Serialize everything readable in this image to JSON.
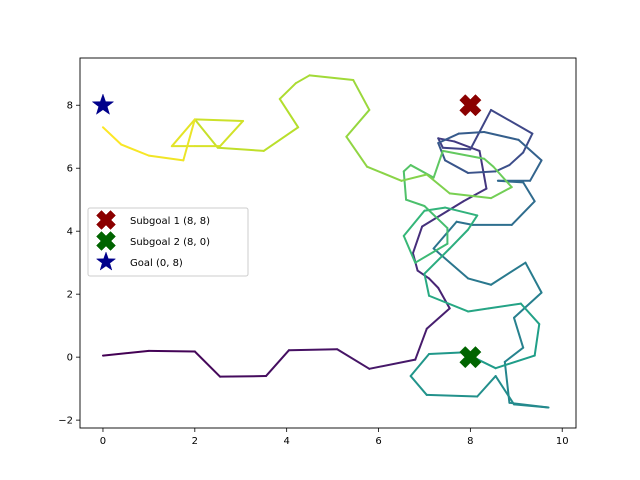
{
  "chart_data": {
    "type": "line",
    "title": "",
    "xlabel": "",
    "ylabel": "",
    "xlim": [
      -0.5,
      10.3
    ],
    "ylim": [
      -2.25,
      9.5
    ],
    "xticks": [
      0,
      2,
      4,
      6,
      8,
      10
    ],
    "yticks": [
      -2,
      0,
      2,
      4,
      6,
      8
    ],
    "grid": false,
    "colormap": "viridis",
    "path": [
      [
        0,
        0.05
      ],
      [
        1,
        0.2
      ],
      [
        2,
        0.18
      ],
      [
        2.55,
        -0.62
      ],
      [
        3.55,
        -0.6
      ],
      [
        4.05,
        0.22
      ],
      [
        5.1,
        0.25
      ],
      [
        5.8,
        -0.37
      ],
      [
        6.8,
        -0.08
      ],
      [
        7.05,
        0.9
      ],
      [
        7.55,
        1.55
      ],
      [
        7.3,
        2.2
      ],
      [
        7.1,
        2.5
      ],
      [
        6.85,
        2.75
      ],
      [
        6.75,
        3.3
      ],
      [
        6.95,
        4.15
      ],
      [
        7.85,
        4.95
      ],
      [
        8.35,
        5.35
      ],
      [
        8.2,
        6.55
      ],
      [
        7.65,
        6.85
      ],
      [
        7.3,
        6.95
      ],
      [
        7.4,
        6.65
      ],
      [
        8,
        6.6
      ],
      [
        8.45,
        7.85
      ],
      [
        9.35,
        7.1
      ],
      [
        9.15,
        6.5
      ],
      [
        8.85,
        6.1
      ],
      [
        8.55,
        5.9
      ],
      [
        7.95,
        5.85
      ],
      [
        7.45,
        6.25
      ],
      [
        7.3,
        6.8
      ],
      [
        7.75,
        7.1
      ],
      [
        8.3,
        7.15
      ],
      [
        9.05,
        6.9
      ],
      [
        9.55,
        6.25
      ],
      [
        9.3,
        5.6
      ],
      [
        8.6,
        5.6
      ],
      [
        9.15,
        5.55
      ],
      [
        9.4,
        4.95
      ],
      [
        8.9,
        4.2
      ],
      [
        8.05,
        4.2
      ],
      [
        7.7,
        4.3
      ],
      [
        7.2,
        3.45
      ],
      [
        7.95,
        2.5
      ],
      [
        8.45,
        2.3
      ],
      [
        9.2,
        3.0
      ],
      [
        9.55,
        2.05
      ],
      [
        8.95,
        1.25
      ],
      [
        9.15,
        0.3
      ],
      [
        8.75,
        -0.15
      ],
      [
        8.85,
        -1.45
      ],
      [
        9.7,
        -1.6
      ],
      [
        8.95,
        -1.5
      ],
      [
        8.55,
        -0.6
      ],
      [
        8.15,
        -1.25
      ],
      [
        7.05,
        -1.2
      ],
      [
        6.7,
        -0.6
      ],
      [
        7.1,
        0.1
      ],
      [
        7.85,
        0.15
      ],
      [
        8.55,
        -0.35
      ],
      [
        9.4,
        0.05
      ],
      [
        9.5,
        1.05
      ],
      [
        9.1,
        1.7
      ],
      [
        8.4,
        1.55
      ],
      [
        7.95,
        1.45
      ],
      [
        7.1,
        1.95
      ],
      [
        7.0,
        2.65
      ],
      [
        7.55,
        3.45
      ],
      [
        7.95,
        4.05
      ],
      [
        8.15,
        4.5
      ],
      [
        7.45,
        4.75
      ],
      [
        7.0,
        4.65
      ],
      [
        6.55,
        3.85
      ],
      [
        6.8,
        3.0
      ],
      [
        7.5,
        3.6
      ],
      [
        7.5,
        4.1
      ],
      [
        7.0,
        4.8
      ],
      [
        6.6,
        5.0
      ],
      [
        6.55,
        5.9
      ],
      [
        6.7,
        6.1
      ],
      [
        7.2,
        5.7
      ],
      [
        7.4,
        6.55
      ],
      [
        8.3,
        6.3
      ],
      [
        8.5,
        6.05
      ],
      [
        8.9,
        5.4
      ],
      [
        8.45,
        5.05
      ],
      [
        7.55,
        5.2
      ],
      [
        7.05,
        5.8
      ],
      [
        6.5,
        5.6
      ],
      [
        5.75,
        6.05
      ],
      [
        5.3,
        7.0
      ],
      [
        5.8,
        7.85
      ],
      [
        5.45,
        8.8
      ],
      [
        4.5,
        8.95
      ],
      [
        4.2,
        8.7
      ],
      [
        3.85,
        8.2
      ],
      [
        4.25,
        7.3
      ],
      [
        3.5,
        6.55
      ],
      [
        2.5,
        6.65
      ],
      [
        2.0,
        7.55
      ],
      [
        3.05,
        7.5
      ],
      [
        2.55,
        6.7
      ],
      [
        2.0,
        6.7
      ],
      [
        1.5,
        6.7
      ],
      [
        2.0,
        7.55
      ],
      [
        1.75,
        6.25
      ],
      [
        1.0,
        6.4
      ],
      [
        0.4,
        6.75
      ],
      [
        0,
        7.3
      ]
    ],
    "markers": [
      {
        "label": "Subgoal 1 (8, 8)",
        "x": 8,
        "y": 8,
        "marker": "X",
        "color": "#8b0000"
      },
      {
        "label": "Subgoal 2 (8, 0)",
        "x": 8,
        "y": 0,
        "marker": "X",
        "color": "#006400"
      },
      {
        "label": "Goal (0, 8)",
        "x": 0,
        "y": 8,
        "marker": "star",
        "color": "#00008b"
      }
    ],
    "legend_position": "center-left"
  }
}
